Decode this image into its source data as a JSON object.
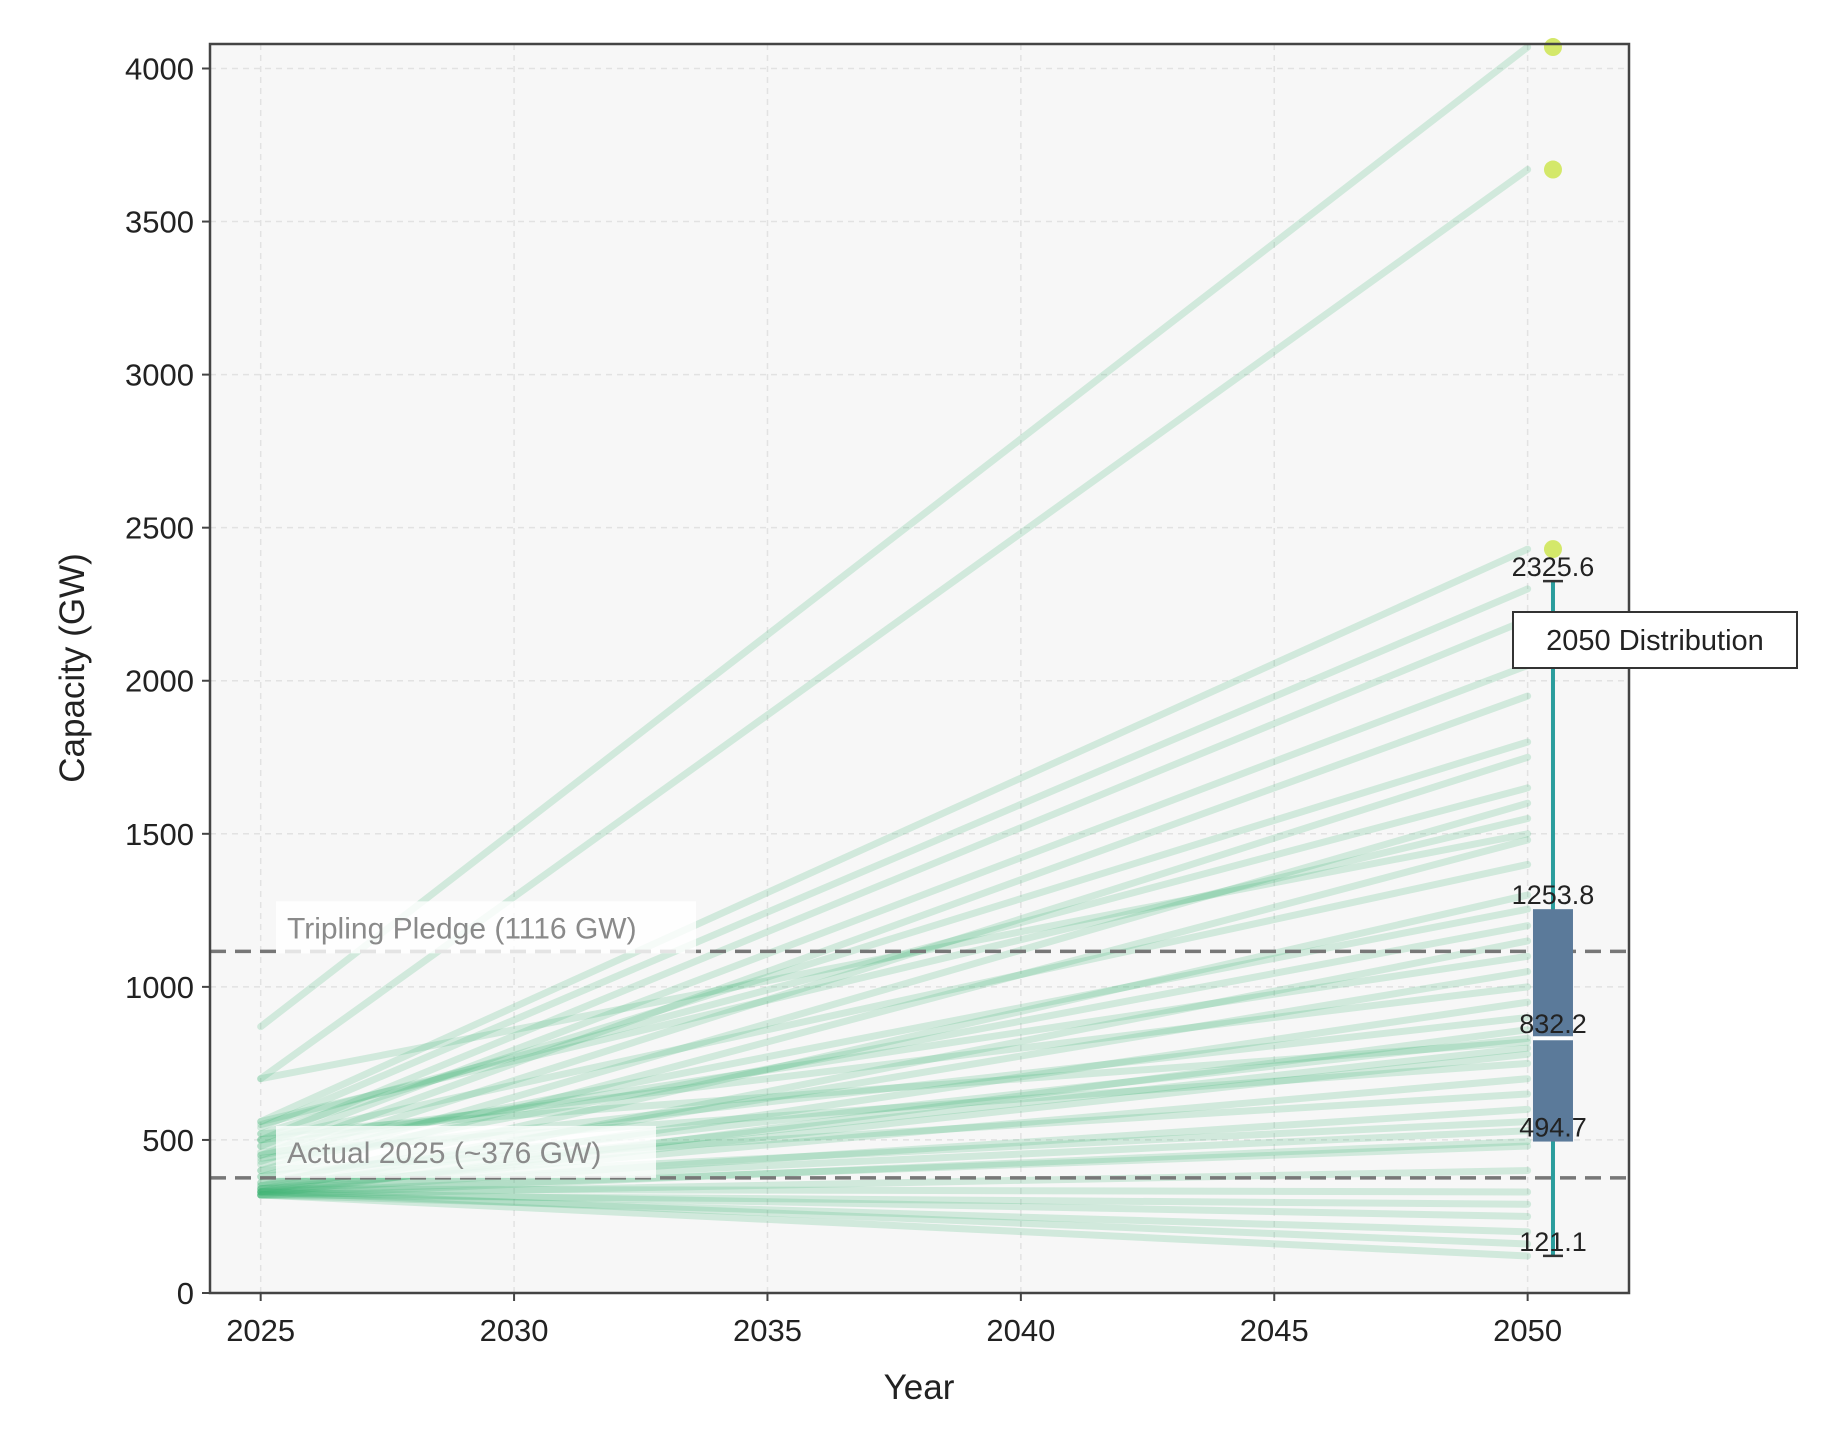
{
  "chart_data": {
    "type": "line",
    "title": "",
    "xlabel": "Year",
    "ylabel": "Capacity (GW)",
    "xlim": [
      2024,
      2052
    ],
    "ylim": [
      0,
      4080
    ],
    "grid": true,
    "x_ticks": [
      2025,
      2030,
      2035,
      2040,
      2045,
      2050
    ],
    "y_ticks": [
      0,
      500,
      1000,
      1500,
      2000,
      2500,
      3000,
      3500,
      4000
    ],
    "x": [
      2025,
      2050
    ],
    "line_color": "#3cb371",
    "trajectories": [
      [
        870,
        4070
      ],
      [
        700,
        3670
      ],
      [
        560,
        2430
      ],
      [
        540,
        2300
      ],
      [
        500,
        2200
      ],
      [
        480,
        2050
      ],
      [
        450,
        1950
      ],
      [
        520,
        1800
      ],
      [
        430,
        1750
      ],
      [
        400,
        1600
      ],
      [
        560,
        1550
      ],
      [
        380,
        1480
      ],
      [
        500,
        1400
      ],
      [
        350,
        1300
      ],
      [
        450,
        1254
      ],
      [
        420,
        1200
      ],
      [
        330,
        1150
      ],
      [
        480,
        1100
      ],
      [
        360,
        1050
      ],
      [
        500,
        1000
      ],
      [
        340,
        950
      ],
      [
        440,
        900
      ],
      [
        320,
        860
      ],
      [
        380,
        832
      ],
      [
        520,
        820
      ],
      [
        350,
        800
      ],
      [
        330,
        780
      ],
      [
        460,
        750
      ],
      [
        340,
        700
      ],
      [
        400,
        650
      ],
      [
        330,
        600
      ],
      [
        360,
        560
      ],
      [
        340,
        530
      ],
      [
        320,
        495
      ],
      [
        330,
        480
      ],
      [
        320,
        400
      ],
      [
        340,
        330
      ],
      [
        320,
        290
      ],
      [
        330,
        250
      ],
      [
        320,
        200
      ],
      [
        330,
        160
      ],
      [
        320,
        121
      ],
      [
        700,
        1500
      ],
      [
        550,
        1650
      ]
    ],
    "reference_lines": [
      {
        "label": "Tripling Pledge (1116 GW)",
        "value": 1116
      },
      {
        "label": "Actual 2025 (~376 GW)",
        "value": 376
      }
    ],
    "boxplot": {
      "label": "2050 Distribution",
      "position": 2050.5,
      "whisker_low": 121.1,
      "q1": 494.7,
      "median": 832.2,
      "q3": 1253.8,
      "whisker_high": 2325.6,
      "labels": [
        "2325.6",
        "1253.8",
        "832.2",
        "494.7",
        "121.1"
      ],
      "outliers": [
        4070,
        3670,
        2430
      ],
      "box_color": "#5b7a9a",
      "whisker_color": "#2a9d9d",
      "outlier_color": "#d4e86a"
    }
  }
}
